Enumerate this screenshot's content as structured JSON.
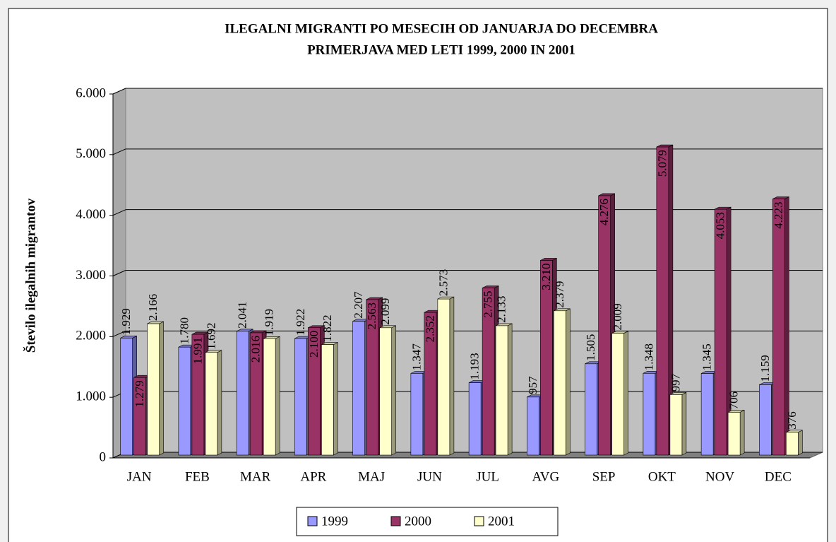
{
  "chart_data": {
    "type": "bar3d",
    "title": "ILEGALNI MIGRANTI PO MESECIH OD JANUARJA DO DECEMBRA",
    "subtitle": "PRIMERJAVA MED LETI 1999, 2000 IN 2001",
    "y_label": "Število ilegalnih migrantov",
    "categories": [
      "JAN",
      "FEB",
      "MAR",
      "APR",
      "MAJ",
      "JUN",
      "JUL",
      "AVG",
      "SEP",
      "OKT",
      "NOV",
      "DEC"
    ],
    "series": [
      {
        "name": "1999",
        "color": "#9999ff",
        "values": [
          1929,
          1780,
          2041,
          1922,
          2207,
          1347,
          1193,
          957,
          1505,
          1348,
          1345,
          1159
        ],
        "value_labels": [
          "1.929",
          "1.780",
          "2.041",
          "1.922",
          "2.207",
          "1.347",
          "1.193",
          "957",
          "1.505",
          "1.348",
          "1.345",
          "1.159"
        ]
      },
      {
        "name": "2000",
        "color": "#993366",
        "values": [
          1279,
          1991,
          2016,
          2100,
          2563,
          2352,
          2755,
          3210,
          4276,
          5079,
          4053,
          4223
        ],
        "value_labels": [
          "1.279",
          "1.991",
          "2.016",
          "2.100",
          "2.563",
          "2.352",
          "2.755",
          "3.210",
          "4.276",
          "5.079",
          "4.053",
          "4.223"
        ]
      },
      {
        "name": "2001",
        "color": "#ffffcc",
        "values": [
          2166,
          1692,
          1919,
          1822,
          2099,
          2573,
          2133,
          2379,
          2009,
          997,
          706,
          376
        ],
        "value_labels": [
          "2.166",
          "1.692",
          "1.919",
          "1.822",
          "2.099",
          "2.573",
          "2.133",
          "2.379",
          "2.009",
          "997",
          "706",
          "376"
        ]
      }
    ],
    "ylim": [
      0,
      6000
    ],
    "yticks": [
      0,
      {
        "value": 1000,
        "label": "1.000"
      },
      {
        "value": 2000,
        "label": "2.000"
      },
      {
        "value": 3000,
        "label": "3.000"
      },
      {
        "value": 4000,
        "label": "4.000"
      },
      {
        "value": 5000,
        "label": "5.000"
      },
      {
        "value": 6000,
        "label": "6.000"
      }
    ],
    "grid": true,
    "legend": "bottom"
  }
}
